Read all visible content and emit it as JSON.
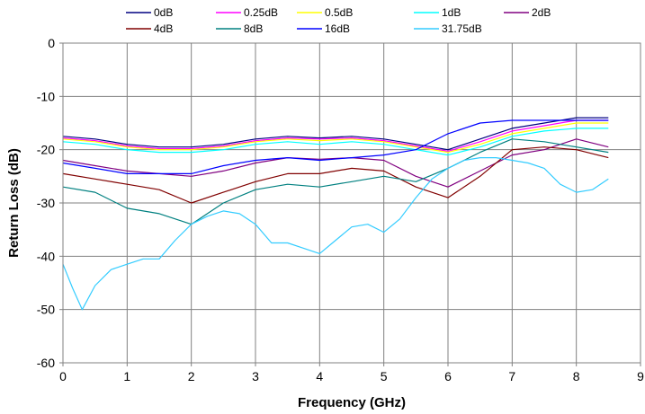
{
  "chart_data": {
    "type": "line",
    "title": "",
    "xlabel": "Frequency (GHz)",
    "ylabel": "Return Loss (dB)",
    "xlim": [
      0,
      9
    ],
    "ylim": [
      -60,
      0
    ],
    "xticks": [
      0,
      1,
      2,
      3,
      4,
      5,
      6,
      7,
      8,
      9
    ],
    "yticks": [
      0,
      -10,
      -20,
      -30,
      -40,
      -50,
      -60
    ],
    "xtick_labels": [
      "0",
      "1",
      "2",
      "3",
      "4",
      "5",
      "6",
      "7",
      "8",
      "9"
    ],
    "ytick_labels": [
      "0",
      "-10",
      "-20",
      "-30",
      "-40",
      "-50",
      "-60"
    ],
    "grid": true,
    "legend_position": "top",
    "series": [
      {
        "name": "0dB",
        "color": "#000080",
        "x": [
          0,
          0.5,
          1,
          1.5,
          2,
          2.5,
          3,
          3.5,
          4,
          4.5,
          5,
          5.5,
          6,
          6.5,
          7,
          7.5,
          8,
          8.5
        ],
        "values": [
          -17.5,
          -18,
          -19,
          -19.5,
          -19.5,
          -19,
          -18,
          -17.5,
          -17.8,
          -17.5,
          -18,
          -19,
          -20,
          -18,
          -16,
          -15,
          -14,
          -14
        ]
      },
      {
        "name": "0.25dB",
        "color": "#ff00ff",
        "x": [
          0,
          0.5,
          1,
          1.5,
          2,
          2.5,
          3,
          3.5,
          4,
          4.5,
          5,
          5.5,
          6,
          6.5,
          7,
          7.5,
          8,
          8.5
        ],
        "values": [
          -17.8,
          -18.3,
          -19.3,
          -19.8,
          -19.8,
          -19.3,
          -18.3,
          -17.8,
          -18,
          -17.8,
          -18.3,
          -19.3,
          -20.3,
          -18.5,
          -16.5,
          -15.5,
          -14.5,
          -14.5
        ]
      },
      {
        "name": "0.5dB",
        "color": "#ffff00",
        "x": [
          0,
          0.5,
          1,
          1.5,
          2,
          2.5,
          3,
          3.5,
          4,
          4.5,
          5,
          5.5,
          6,
          6.5,
          7,
          7.5,
          8,
          8.5
        ],
        "values": [
          -18,
          -18.5,
          -19.5,
          -20,
          -20,
          -19.5,
          -18.5,
          -18,
          -18.3,
          -18,
          -18.5,
          -19.5,
          -20.5,
          -19,
          -17,
          -16,
          -15,
          -15
        ]
      },
      {
        "name": "1dB",
        "color": "#00ffff",
        "x": [
          0,
          0.5,
          1,
          1.5,
          2,
          2.5,
          3,
          3.5,
          4,
          4.5,
          5,
          5.5,
          6,
          6.5,
          7,
          7.5,
          8,
          8.5
        ],
        "values": [
          -18.5,
          -19,
          -20,
          -20.5,
          -20.5,
          -20,
          -19,
          -18.5,
          -19,
          -18.5,
          -19,
          -20,
          -21,
          -19.5,
          -17.5,
          -16.5,
          -16,
          -16
        ]
      },
      {
        "name": "2dB",
        "color": "#800080",
        "x": [
          0,
          0.5,
          1,
          1.5,
          2,
          2.5,
          3,
          3.5,
          4,
          4.5,
          5,
          5.5,
          6,
          6.5,
          7,
          7.5,
          8,
          8.5
        ],
        "values": [
          -22,
          -23,
          -24,
          -24.5,
          -25,
          -24,
          -22.5,
          -21.5,
          -21.8,
          -21.5,
          -22,
          -25,
          -27,
          -24,
          -21,
          -20,
          -18,
          -19.5
        ]
      },
      {
        "name": "4dB",
        "color": "#800000",
        "x": [
          0,
          0.5,
          1,
          1.5,
          2,
          2.5,
          3,
          3.5,
          4,
          4.5,
          5,
          5.5,
          6,
          6.5,
          7,
          7.5,
          8,
          8.5
        ],
        "values": [
          -24.5,
          -25.5,
          -26.5,
          -27.5,
          -30,
          -28,
          -26,
          -24.5,
          -24.5,
          -23.5,
          -24,
          -27,
          -29,
          -25,
          -20,
          -19.5,
          -20,
          -21.5
        ]
      },
      {
        "name": "8dB",
        "color": "#008080",
        "x": [
          0,
          0.5,
          1,
          1.5,
          2,
          2.5,
          3,
          3.5,
          4,
          4.5,
          5,
          5.5,
          6,
          6.5,
          7,
          7.5,
          8,
          8.5
        ],
        "values": [
          -27,
          -28,
          -31,
          -32,
          -34,
          -30,
          -27.5,
          -26.5,
          -27,
          -26,
          -25,
          -26,
          -23.5,
          -20.5,
          -18,
          -18.5,
          -19.5,
          -20.5
        ]
      },
      {
        "name": "16dB",
        "color": "#0000ff",
        "x": [
          0,
          0.5,
          1,
          1.5,
          2,
          2.5,
          3,
          3.5,
          4,
          4.5,
          5,
          5.5,
          6,
          6.5,
          7,
          7.5,
          8,
          8.5
        ],
        "values": [
          -22.5,
          -23.5,
          -24.5,
          -24.5,
          -24.5,
          -23,
          -22,
          -21.5,
          -22,
          -21.5,
          -21,
          -20,
          -17,
          -15,
          -14.5,
          -14.5,
          -14.5,
          -14.5
        ]
      },
      {
        "name": "31.75dB",
        "color": "#33ccff",
        "x": [
          0,
          0.15,
          0.3,
          0.5,
          0.75,
          1,
          1.25,
          1.5,
          1.75,
          2,
          2.25,
          2.5,
          2.75,
          3,
          3.25,
          3.5,
          3.75,
          4,
          4.25,
          4.5,
          4.75,
          5,
          5.25,
          5.5,
          5.75,
          6,
          6.25,
          6.5,
          6.75,
          7,
          7.25,
          7.5,
          7.75,
          8,
          8.25,
          8.5
        ],
        "values": [
          -41.5,
          -46,
          -50,
          -45.5,
          -42.5,
          -41.5,
          -40.5,
          -40.5,
          -37,
          -34,
          -32.5,
          -31.5,
          -32,
          -34,
          -37.5,
          -37.5,
          -38.5,
          -39.5,
          -37,
          -34.5,
          -34,
          -35.5,
          -33,
          -29,
          -25.5,
          -23.5,
          -22,
          -21.5,
          -21.5,
          -22,
          -22.5,
          -23.5,
          -26.5,
          -28,
          -27.5,
          -25.5
        ]
      }
    ]
  }
}
